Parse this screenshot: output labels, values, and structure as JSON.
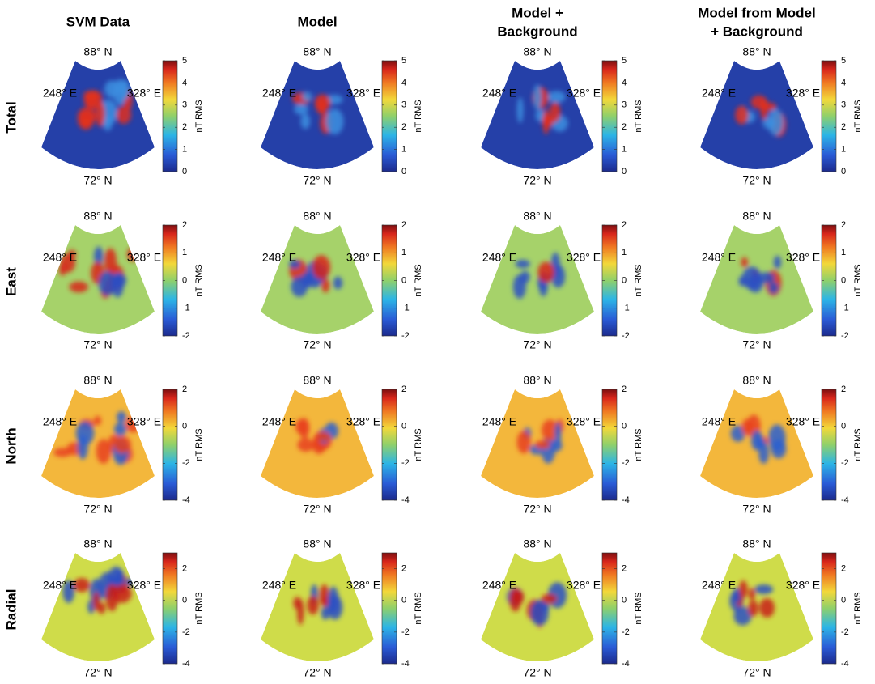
{
  "figure": {
    "columns": [
      {
        "title_lines": [
          "SVM Data"
        ]
      },
      {
        "title_lines": [
          "Model"
        ]
      },
      {
        "title_lines": [
          "Model +",
          "Background"
        ]
      },
      {
        "title_lines": [
          "Model from Model",
          "+ Background"
        ]
      }
    ],
    "rows": [
      {
        "label": "Total",
        "colorbar": {
          "ylim": [
            0,
            5
          ],
          "yticks": [
            0,
            1,
            2,
            3,
            4,
            5
          ]
        }
      },
      {
        "label": "East",
        "colorbar": {
          "ylim": [
            -2,
            2
          ],
          "yticks": [
            -2,
            -1,
            0,
            1,
            2
          ]
        }
      },
      {
        "label": "North",
        "colorbar": {
          "ylim": [
            -4,
            2
          ],
          "yticks": [
            -4,
            -2,
            0,
            2
          ]
        }
      },
      {
        "label": "Radial",
        "colorbar": {
          "ylim": [
            -4,
            3
          ],
          "yticks": [
            -4,
            -2,
            0,
            2
          ]
        }
      }
    ],
    "colorbar_label": "nT RMS",
    "map_labels": {
      "north": "88° N",
      "south": "72° N",
      "west": "248° E",
      "east": "328° E"
    }
  }
}
